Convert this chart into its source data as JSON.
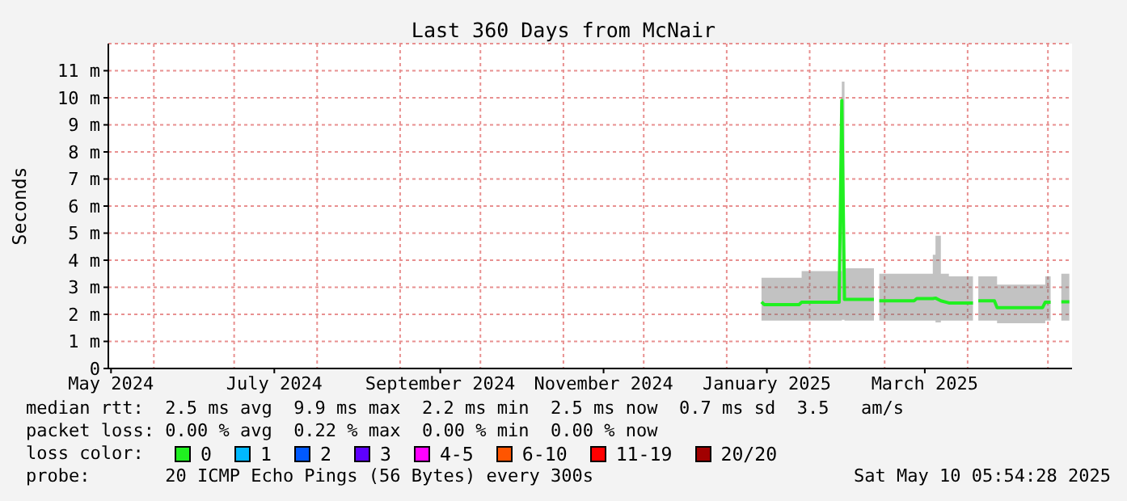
{
  "chart_data": {
    "type": "line",
    "title": "Last 360 Days from McNair",
    "ylabel": "Seconds",
    "x": [
      "2025-01-14",
      "2025-01-15",
      "2025-01-28",
      "2025-01-29",
      "2025-02-12",
      "2025-02-13",
      "2025-02-14",
      "2025-02-25",
      "2025-02-26",
      "2025-02-27",
      "2025-03-12",
      "2025-03-13",
      "2025-03-19",
      "2025-03-20",
      "2025-03-22",
      "2025-03-25",
      "2025-04-03",
      "2025-04-04",
      "2025-04-05",
      "2025-04-11",
      "2025-04-12",
      "2025-04-29",
      "2025-04-30",
      "2025-05-02",
      "2025-05-03",
      "2025-05-06",
      "2025-05-09"
    ],
    "series": [
      {
        "color": "#20f020",
        "values": [
          2.46,
          2.36,
          2.36,
          2.45,
          2.45,
          9.9,
          2.55,
          2.55,
          null,
          2.5,
          2.5,
          2.58,
          2.58,
          2.6,
          2.5,
          2.42,
          2.42,
          null,
          2.5,
          2.5,
          2.25,
          2.25,
          2.45,
          2.45,
          null,
          2.46,
          2.46
        ],
        "lower": [
          1.77,
          1.77,
          1.77,
          1.77,
          1.77,
          1.8,
          1.77,
          1.77,
          null,
          1.77,
          1.77,
          1.77,
          1.77,
          1.7,
          1.77,
          1.77,
          1.77,
          null,
          1.77,
          1.77,
          1.67,
          1.67,
          1.77,
          1.77,
          null,
          1.77,
          1.77
        ],
        "upper": [
          3.35,
          3.35,
          3.35,
          3.6,
          3.6,
          10.6,
          3.7,
          3.7,
          null,
          3.5,
          3.5,
          3.5,
          4.2,
          4.9,
          3.5,
          3.4,
          3.4,
          null,
          3.4,
          3.4,
          3.1,
          3.1,
          3.4,
          3.4,
          null,
          3.5,
          3.5
        ]
      }
    ],
    "xlim": [
      "2024-05-15",
      "2025-05-10"
    ],
    "xticks": [
      {
        "value": "2024-05-16",
        "label": "May 2024"
      },
      {
        "value": "2024-07-16",
        "label": "July 2024"
      },
      {
        "value": "2024-09-16",
        "label": "September 2024"
      },
      {
        "value": "2024-11-16",
        "label": "November 2024"
      },
      {
        "value": "2025-01-16",
        "label": "January 2025"
      },
      {
        "value": "2025-03-16",
        "label": "March 2025"
      }
    ],
    "ylim": [
      0,
      12
    ],
    "yticks": [
      0,
      {
        "value": 1,
        "label": "1 m"
      },
      {
        "value": 2,
        "label": "2 m"
      },
      {
        "value": 3,
        "label": "3 m"
      },
      {
        "value": 4,
        "label": "4 m"
      },
      {
        "value": 5,
        "label": "5 m"
      },
      {
        "value": 6,
        "label": "6 m"
      },
      {
        "value": 7,
        "label": "7 m"
      },
      {
        "value": 8,
        "label": "8 m"
      },
      {
        "value": 9,
        "label": "9 m"
      },
      {
        "value": 10,
        "label": "10 m"
      },
      {
        "value": 11,
        "label": "11 m"
      }
    ],
    "grid": true,
    "legend": false,
    "marker": "none",
    "line_style": "solid",
    "annotations": [
      "median rtt:  2.5 ms avg  9.9 ms max  2.2 ms min  2.5 ms now  0.7 ms sd  3.5   am/s",
      "packet loss: 0.00 % avg  0.22 % max  0.00 % min  0.00 % now",
      "loss color:",
      "0",
      "1",
      "2",
      "3",
      "4-5",
      "6-10",
      "11-19",
      "20/20",
      "probe:       20 ICMP Echo Pings (56 Bytes) every 300s",
      "Sat May 10 05:54:28 2025"
    ]
  }
}
